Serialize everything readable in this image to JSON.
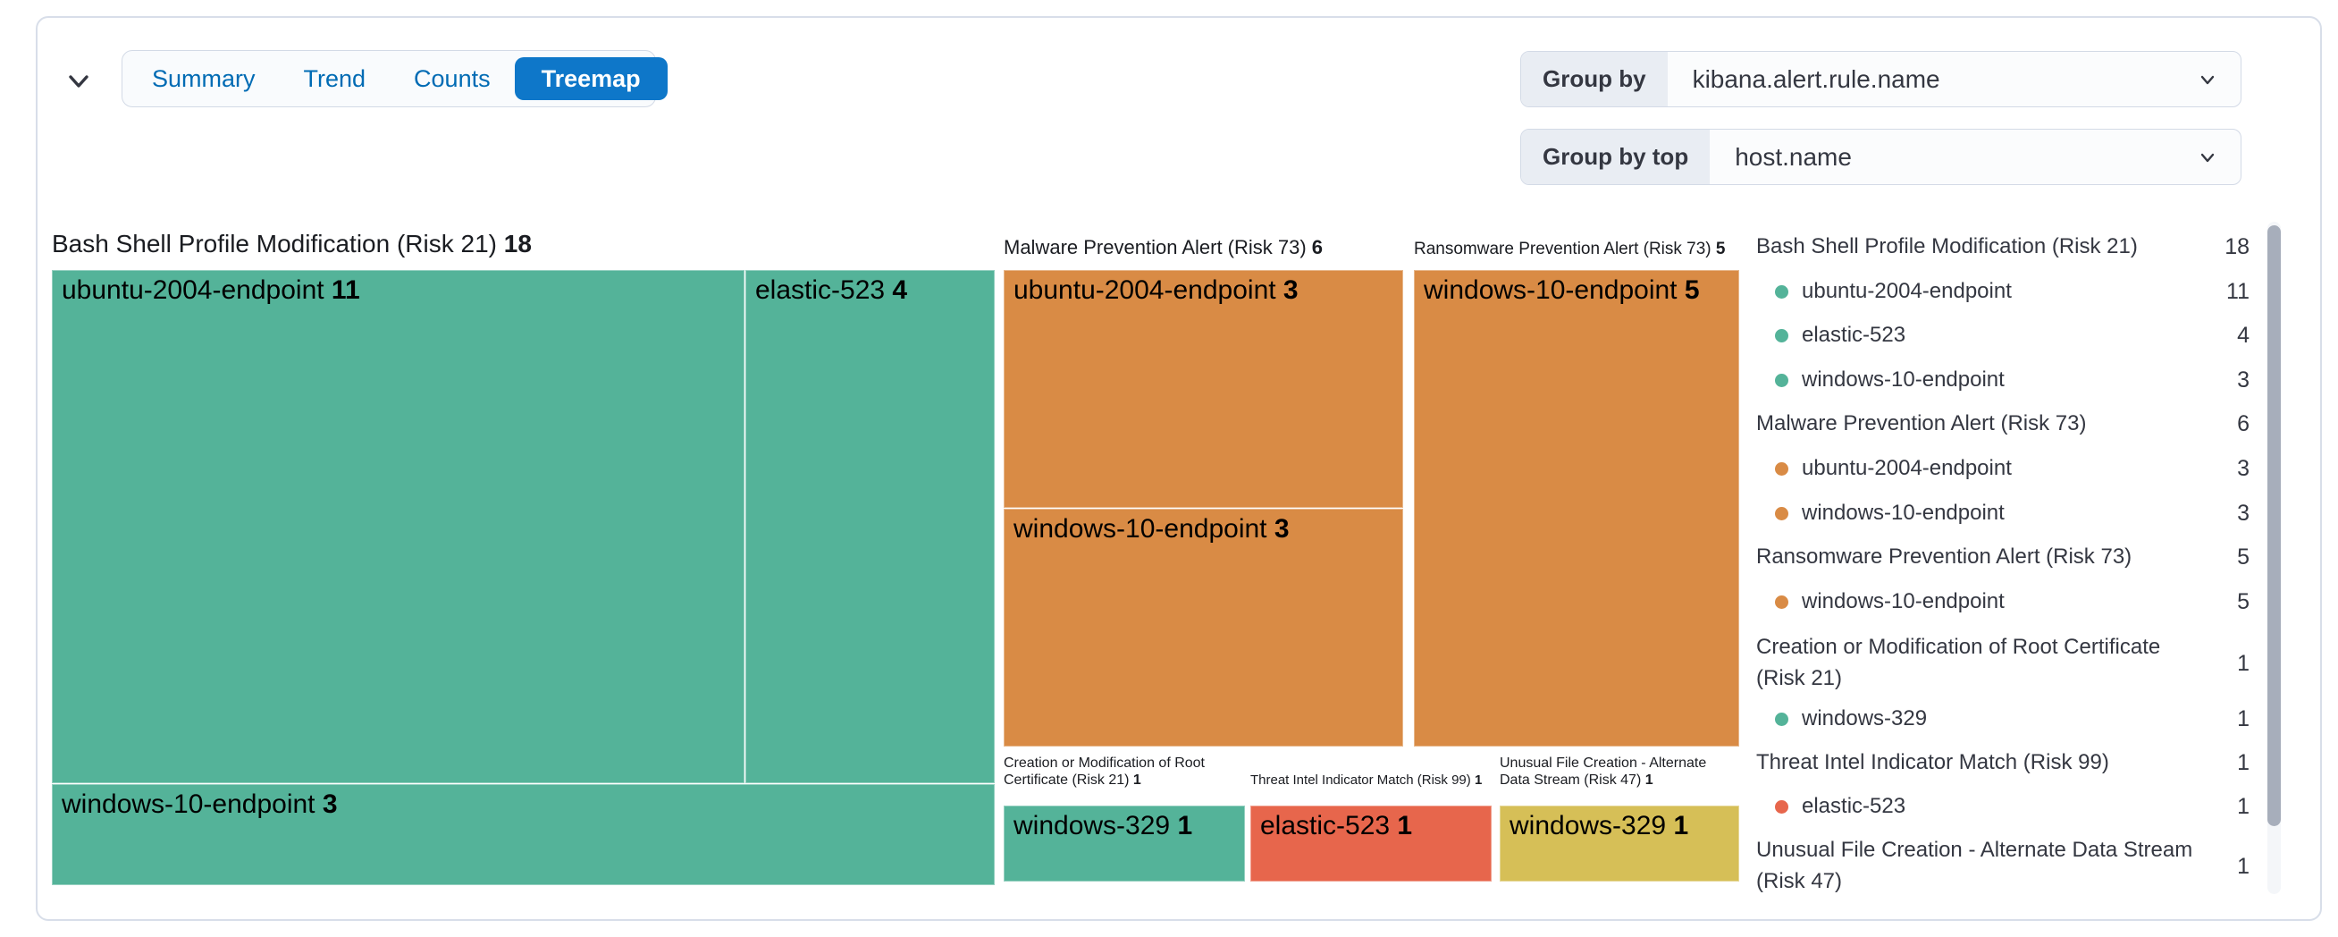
{
  "tabs": {
    "items": [
      {
        "label": "Summary",
        "selected": false
      },
      {
        "label": "Trend",
        "selected": false
      },
      {
        "label": "Counts",
        "selected": false
      },
      {
        "label": "Treemap",
        "selected": true
      }
    ]
  },
  "controls": {
    "group_by": {
      "label": "Group by",
      "value": "kibana.alert.rule.name"
    },
    "group_by_top": {
      "label": "Group by top",
      "value": "host.name"
    }
  },
  "colors": {
    "green": "#54B399",
    "orange": "#D98B45",
    "red": "#E7664C",
    "yellow": "#D6BF57",
    "selected_tab": "#0E77C9",
    "tab_text": "#006BB4",
    "text": "#343741"
  },
  "chart_data": {
    "type": "treemap",
    "group_by_field": "kibana.alert.rule.name",
    "secondary_field": "host.name",
    "groups": [
      {
        "name": "Bash Shell Profile Modification (Risk 21)",
        "total": 18,
        "color": "#54B399",
        "children": [
          {
            "name": "ubuntu-2004-endpoint",
            "value": 11
          },
          {
            "name": "elastic-523",
            "value": 4
          },
          {
            "name": "windows-10-endpoint",
            "value": 3
          }
        ]
      },
      {
        "name": "Malware Prevention Alert (Risk 73)",
        "total": 6,
        "color": "#D98B45",
        "children": [
          {
            "name": "ubuntu-2004-endpoint",
            "value": 3
          },
          {
            "name": "windows-10-endpoint",
            "value": 3
          }
        ]
      },
      {
        "name": "Ransomware Prevention Alert (Risk 73)",
        "total": 5,
        "color": "#D98B45",
        "children": [
          {
            "name": "windows-10-endpoint",
            "value": 5
          }
        ]
      },
      {
        "name": "Creation or Modification of Root Certificate (Risk 21)",
        "total": 1,
        "color": "#54B399",
        "children": [
          {
            "name": "windows-329",
            "value": 1
          }
        ]
      },
      {
        "name": "Threat Intel Indicator Match (Risk 99)",
        "total": 1,
        "color": "#E7664C",
        "children": [
          {
            "name": "elastic-523",
            "value": 1
          }
        ]
      },
      {
        "name": "Unusual File Creation - Alternate Data Stream (Risk 47)",
        "total": 1,
        "color": "#D6BF57",
        "children": [
          {
            "name": "windows-329",
            "value": 1
          }
        ]
      }
    ],
    "legend_position": "right",
    "legend_visible_rows": 14
  }
}
